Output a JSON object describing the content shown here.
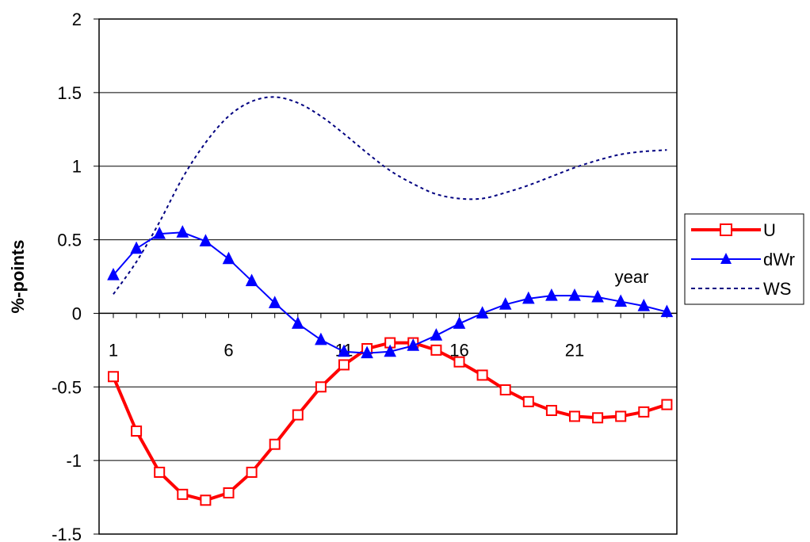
{
  "chart_data": {
    "type": "line",
    "title": "",
    "xlabel": "",
    "ylabel": "%-points",
    "annotation": "year",
    "ylim": [
      -1.5,
      2
    ],
    "yticks": [
      "2",
      "1.5",
      "1",
      "0.5",
      "0",
      "-0.5",
      "-1",
      "-1.5"
    ],
    "ytick_values": [
      2,
      1.5,
      1,
      0.5,
      0,
      -0.5,
      -1,
      -1.5
    ],
    "xlim": [
      1,
      25
    ],
    "xticks": [
      "1",
      "6",
      "11",
      "16",
      "21"
    ],
    "xtick_values": [
      1,
      6,
      11,
      16,
      21
    ],
    "grid": "horizontal",
    "legend_position": "right",
    "x": [
      1,
      2,
      3,
      4,
      5,
      6,
      7,
      8,
      9,
      10,
      11,
      12,
      13,
      14,
      15,
      16,
      17,
      18,
      19,
      20,
      21,
      22,
      23,
      24,
      25
    ],
    "series": [
      {
        "name": "U",
        "color": "#ff0000",
        "marker": "open-square",
        "style": "solid-thick",
        "values": [
          -0.43,
          -0.8,
          -1.08,
          -1.23,
          -1.27,
          -1.22,
          -1.08,
          -0.89,
          -0.69,
          -0.5,
          -0.35,
          -0.24,
          -0.2,
          -0.2,
          -0.25,
          -0.33,
          -0.42,
          -0.52,
          -0.6,
          -0.66,
          -0.7,
          -0.71,
          -0.7,
          -0.67,
          -0.62
        ]
      },
      {
        "name": "dWr",
        "color": "#0000ff",
        "marker": "filled-triangle",
        "style": "solid",
        "values": [
          0.26,
          0.44,
          0.54,
          0.55,
          0.49,
          0.37,
          0.22,
          0.07,
          -0.07,
          -0.18,
          -0.26,
          -0.27,
          -0.26,
          -0.22,
          -0.15,
          -0.07,
          0.0,
          0.06,
          0.1,
          0.12,
          0.12,
          0.11,
          0.08,
          0.05,
          0.01
        ]
      },
      {
        "name": "WS",
        "color": "#000080",
        "marker": "none",
        "style": "dotted",
        "values": [
          0.13,
          0.35,
          0.62,
          0.92,
          1.16,
          1.34,
          1.44,
          1.47,
          1.43,
          1.34,
          1.22,
          1.09,
          0.97,
          0.88,
          0.81,
          0.78,
          0.78,
          0.82,
          0.87,
          0.93,
          0.99,
          1.04,
          1.08,
          1.1,
          1.11
        ]
      }
    ]
  }
}
